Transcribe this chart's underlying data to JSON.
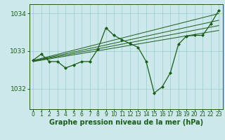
{
  "xlabel": "Graphe pression niveau de la mer (hPa)",
  "background_color": "#cce8ea",
  "grid_color": "#99cccc",
  "line_color": "#1a5c1a",
  "xlim": [
    -0.5,
    23.5
  ],
  "ylim": [
    1031.45,
    1034.25
  ],
  "yticks": [
    1032,
    1033,
    1034
  ],
  "xticks": [
    0,
    1,
    2,
    3,
    4,
    5,
    6,
    7,
    8,
    9,
    10,
    11,
    12,
    13,
    14,
    15,
    16,
    17,
    18,
    19,
    20,
    21,
    22,
    23
  ],
  "main_series": [
    [
      0,
      1032.76
    ],
    [
      1,
      1032.92
    ],
    [
      2,
      1032.72
    ],
    [
      3,
      1032.72
    ],
    [
      4,
      1032.55
    ],
    [
      5,
      1032.63
    ],
    [
      6,
      1032.72
    ],
    [
      7,
      1032.72
    ],
    [
      8,
      1033.05
    ],
    [
      9,
      1033.62
    ],
    [
      10,
      1033.42
    ],
    [
      11,
      1033.3
    ],
    [
      12,
      1033.2
    ],
    [
      13,
      1033.1
    ],
    [
      14,
      1032.72
    ],
    [
      15,
      1031.88
    ],
    [
      16,
      1032.05
    ],
    [
      17,
      1032.42
    ],
    [
      18,
      1033.18
    ],
    [
      19,
      1033.4
    ],
    [
      20,
      1033.42
    ],
    [
      21,
      1033.42
    ],
    [
      22,
      1033.72
    ],
    [
      23,
      1034.08
    ]
  ],
  "trend_lines": [
    [
      [
        0,
        1032.72
      ],
      [
        23,
        1033.55
      ]
    ],
    [
      [
        0,
        1032.73
      ],
      [
        23,
        1033.68
      ]
    ],
    [
      [
        0,
        1032.74
      ],
      [
        23,
        1033.82
      ]
    ],
    [
      [
        0,
        1032.75
      ],
      [
        23,
        1034.0
      ]
    ]
  ],
  "marker": "D",
  "markersize": 2.0,
  "linewidth": 0.9,
  "trend_linewidth": 0.7,
  "xlabel_fontsize": 7,
  "ytick_fontsize": 6.5,
  "xtick_fontsize": 5.5
}
